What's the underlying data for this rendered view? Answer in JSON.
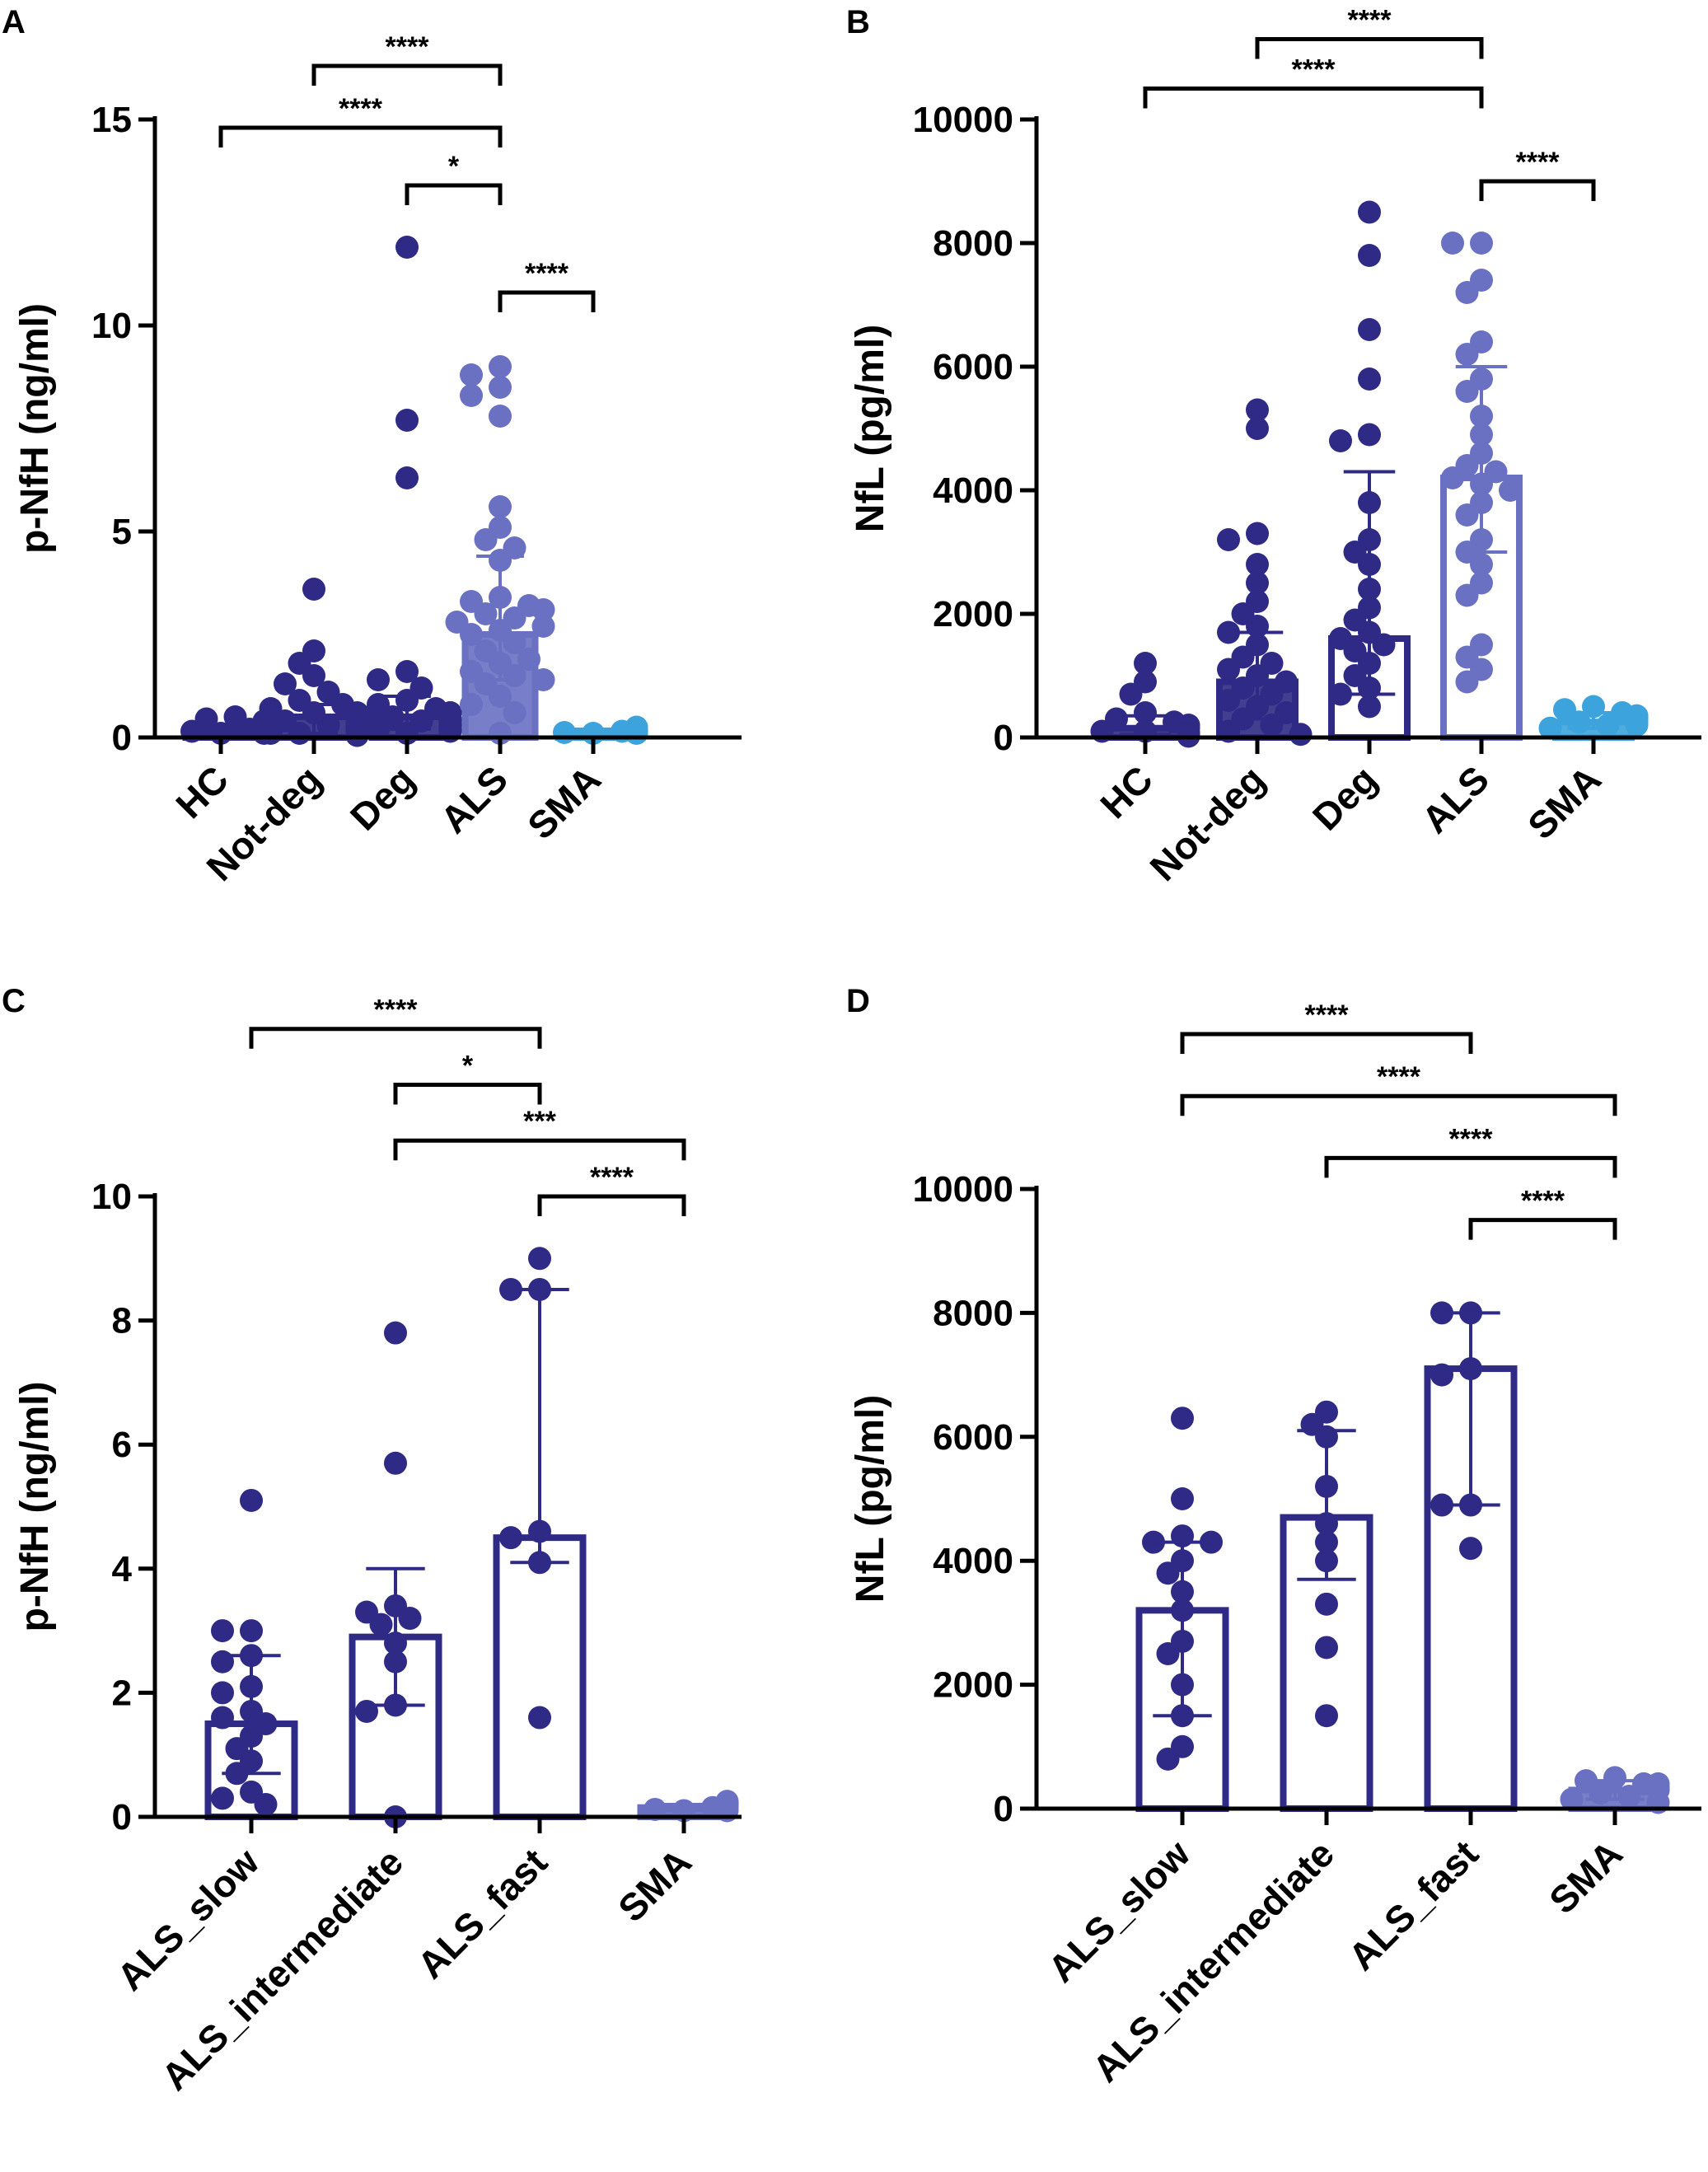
{
  "panels": [
    {
      "letter": "A",
      "chart_data": {
        "type": "bar",
        "ylabel": "p-NfH (ng/ml)",
        "ylim": [
          0,
          15
        ],
        "yticks": [
          0,
          5,
          10,
          15
        ],
        "categories": [
          "HC",
          "Not-deg",
          "Deg",
          "ALS",
          "SMA"
        ],
        "bars": [
          {
            "category": "HC",
            "mean": 0.2,
            "err_low": 0.1,
            "err_high": 0.3,
            "color": "#2e2a85",
            "filled": true,
            "points": [
              0.1,
              0.15,
              0.2,
              0.2,
              0.25,
              0.3,
              0.3,
              0.35,
              0.35,
              0.4,
              0.45,
              0.5,
              0.1,
              0.15
            ]
          },
          {
            "category": "Not-deg",
            "mean": 0.5,
            "err_low": 0.1,
            "err_high": 0.8,
            "color": "#2e2a85",
            "filled": true,
            "points": [
              3.6,
              2.1,
              1.8,
              1.5,
              1.3,
              1.1,
              0.9,
              0.8,
              0.7,
              0.6,
              0.5,
              0.5,
              0.4,
              0.4,
              0.3,
              0.3,
              0.2,
              0.2,
              0.1,
              0.1,
              0.05,
              0.05,
              0.6,
              0.35,
              0.25
            ]
          },
          {
            "category": "Deg",
            "mean": 0.5,
            "err_low": 0.2,
            "err_high": 1.0,
            "color": "#2e2a85",
            "filled": true,
            "points": [
              11.9,
              7.7,
              6.3,
              1.6,
              1.4,
              1.2,
              0.9,
              0.8,
              0.7,
              0.6,
              0.5,
              0.5,
              0.4,
              0.4,
              0.3,
              0.3,
              0.2,
              0.2,
              0.15,
              0.1,
              0.6,
              0.45
            ]
          },
          {
            "category": "ALS",
            "mean": 2.5,
            "err_low": 1.4,
            "err_high": 4.4,
            "color": "#6a70c2",
            "filled": true,
            "points": [
              9.0,
              8.8,
              8.5,
              8.3,
              7.8,
              5.6,
              5.1,
              4.8,
              4.6,
              4.3,
              3.4,
              3.3,
              3.2,
              3.1,
              3.0,
              2.9,
              2.8,
              2.7,
              2.6,
              2.5,
              2.3,
              2.1,
              1.9,
              1.8,
              1.6,
              1.5,
              1.4,
              1.3,
              1.0,
              0.8,
              0.6,
              0.1
            ]
          },
          {
            "category": "SMA",
            "mean": 0.15,
            "err_low": 0.1,
            "err_high": 0.2,
            "color": "#3ca3dc",
            "filled": true,
            "points": [
              0.1,
              0.12,
              0.15,
              0.15,
              0.18,
              0.2,
              0.2,
              0.22,
              0.25,
              0.15,
              0.1,
              0.12
            ]
          }
        ],
        "significance": [
          {
            "from": "Not-deg",
            "to": "ALS",
            "label": "****",
            "y": 16.3
          },
          {
            "from": "HC",
            "to": "ALS",
            "label": "****",
            "y": 14.8
          },
          {
            "from": "Deg",
            "to": "ALS",
            "label": "*",
            "y": 13.4
          },
          {
            "from": "ALS",
            "to": "SMA",
            "label": "****",
            "y": 10.8
          }
        ]
      }
    },
    {
      "letter": "B",
      "chart_data": {
        "type": "bar",
        "ylabel": "NfL (pg/ml)",
        "ylim": [
          0,
          10000
        ],
        "yticks": [
          0,
          2000,
          4000,
          6000,
          8000,
          10000
        ],
        "categories": [
          "HC",
          "Not-deg",
          "Deg",
          "ALS",
          "SMA"
        ],
        "bars": [
          {
            "category": "HC",
            "mean": 150,
            "err_low": 50,
            "err_high": 350,
            "color": "#2e2a85",
            "filled": true,
            "points": [
              1200,
              900,
              700,
              400,
              300,
              250,
              200,
              150,
              100,
              100,
              80,
              60,
              50,
              40,
              30,
              20
            ]
          },
          {
            "category": "Not-deg",
            "mean": 900,
            "err_low": 300,
            "err_high": 1700,
            "color": "#2e2a85",
            "filled": true,
            "points": [
              5300,
              5000,
              3300,
              3200,
              2800,
              2500,
              2200,
              2000,
              1800,
              1700,
              1500,
              1300,
              1200,
              1100,
              1000,
              900,
              800,
              700,
              600,
              500,
              400,
              300,
              200,
              100,
              50
            ]
          },
          {
            "category": "Deg",
            "mean": 1600,
            "err_low": 700,
            "err_high": 4300,
            "color": "#2e2a85",
            "filled": false,
            "points": [
              8500,
              7800,
              6600,
              5800,
              4900,
              4800,
              3800,
              3200,
              3000,
              2800,
              2400,
              2100,
              1900,
              1700,
              1600,
              1500,
              1400,
              1200,
              1000,
              800,
              700,
              500
            ]
          },
          {
            "category": "ALS",
            "mean": 4200,
            "err_low": 3000,
            "err_high": 6000,
            "color": "#6a70c2",
            "filled": false,
            "points": [
              8000,
              8000,
              7400,
              7200,
              6400,
              6200,
              5800,
              5600,
              5200,
              4900,
              4600,
              4400,
              4300,
              4200,
              4100,
              4000,
              3800,
              3600,
              3200,
              3000,
              2800,
              2500,
              2300,
              1500,
              1300,
              1100,
              900
            ]
          },
          {
            "category": "SMA",
            "mean": 250,
            "err_low": 150,
            "err_high": 400,
            "color": "#3ca3dc",
            "filled": true,
            "points": [
              500,
              450,
              400,
              350,
              300,
              250,
              200,
              150,
              250,
              300,
              200,
              350
            ]
          }
        ],
        "significance": [
          {
            "from": "Not-deg",
            "to": "ALS",
            "label": "****",
            "y": 11300
          },
          {
            "from": "HC",
            "to": "ALS",
            "label": "****",
            "y": 10500
          },
          {
            "from": "ALS",
            "to": "SMA",
            "label": "****",
            "y": 9000
          }
        ]
      }
    },
    {
      "letter": "C",
      "chart_data": {
        "type": "bar",
        "ylabel": "p-NfH (ng/ml)",
        "ylim": [
          0,
          10
        ],
        "yticks": [
          0,
          2,
          4,
          6,
          8,
          10
        ],
        "categories": [
          "ALS_slow",
          "ALS_intermediate",
          "ALS_fast",
          "SMA"
        ],
        "bars": [
          {
            "category": "ALS_slow",
            "mean": 1.5,
            "err_low": 0.7,
            "err_high": 2.6,
            "color": "#2e2a85",
            "filled": false,
            "points": [
              5.1,
              3.0,
              3.0,
              2.6,
              2.5,
              2.1,
              2.0,
              1.7,
              1.6,
              1.5,
              1.3,
              1.1,
              0.9,
              0.7,
              0.4,
              0.3,
              0.2
            ]
          },
          {
            "category": "ALS_intermediate",
            "mean": 2.9,
            "err_low": 1.8,
            "err_high": 4.0,
            "color": "#2e2a85",
            "filled": false,
            "points": [
              7.8,
              5.7,
              3.4,
              3.3,
              3.2,
              3.1,
              2.8,
              2.5,
              1.8,
              1.7,
              0.0
            ]
          },
          {
            "category": "ALS_fast",
            "mean": 4.5,
            "err_low": 4.1,
            "err_high": 8.5,
            "color": "#2e2a85",
            "filled": false,
            "points": [
              9.0,
              8.5,
              8.5,
              4.6,
              4.5,
              4.1,
              1.6
            ]
          },
          {
            "category": "SMA",
            "mean": 0.15,
            "err_low": 0.1,
            "err_high": 0.2,
            "color": "#6a70c2",
            "filled": true,
            "points": [
              0.1,
              0.12,
              0.15,
              0.18,
              0.2,
              0.22,
              0.25,
              0.15,
              0.1,
              0.2
            ]
          }
        ],
        "significance": [
          {
            "from": "ALS_slow",
            "to": "ALS_fast",
            "label": "****",
            "y": 12.7
          },
          {
            "from": "ALS_intermediate",
            "to": "ALS_fast",
            "label": "*",
            "y": 11.8
          },
          {
            "from": "ALS_intermediate",
            "to": "SMA",
            "label": "***",
            "y": 10.9
          },
          {
            "from": "ALS_fast",
            "to": "SMA",
            "label": "****",
            "y": 10.0
          }
        ]
      }
    },
    {
      "letter": "D",
      "chart_data": {
        "type": "bar",
        "ylabel": "NfL (pg/ml)",
        "ylim": [
          0,
          10000
        ],
        "yticks": [
          0,
          2000,
          4000,
          6000,
          8000,
          10000
        ],
        "categories": [
          "ALS_slow",
          "ALS_intermediate",
          "ALS_fast",
          "SMA"
        ],
        "bars": [
          {
            "category": "ALS_slow",
            "mean": 3200,
            "err_low": 1500,
            "err_high": 4300,
            "color": "#2e2a85",
            "filled": false,
            "points": [
              6300,
              5000,
              4400,
              4300,
              4300,
              4000,
              3800,
              3500,
              3200,
              2700,
              2500,
              2000,
              1500,
              1000,
              800
            ]
          },
          {
            "category": "ALS_intermediate",
            "mean": 4700,
            "err_low": 3700,
            "err_high": 6100,
            "color": "#2e2a85",
            "filled": false,
            "points": [
              6400,
              6200,
              6000,
              5200,
              4600,
              4300,
              4000,
              3300,
              2600,
              1500
            ]
          },
          {
            "category": "ALS_fast",
            "mean": 7100,
            "err_low": 4900,
            "err_high": 8000,
            "color": "#2e2a85",
            "filled": false,
            "points": [
              8000,
              8000,
              7100,
              7000,
              4900,
              4900,
              4200
            ]
          },
          {
            "category": "SMA",
            "mean": 300,
            "err_low": 150,
            "err_high": 450,
            "color": "#6a70c2",
            "filled": true,
            "points": [
              500,
              450,
              400,
              350,
              300,
              250,
              200,
              150,
              100,
              300,
              400
            ]
          }
        ],
        "significance": [
          {
            "from": "ALS_slow",
            "to": "ALS_fast",
            "label": "****",
            "y": 12500
          },
          {
            "from": "ALS_slow",
            "to": "SMA",
            "label": "****",
            "y": 11500
          },
          {
            "from": "ALS_intermediate",
            "to": "SMA",
            "label": "****",
            "y": 10500
          },
          {
            "from": "ALS_fast",
            "to": "SMA",
            "label": "****",
            "y": 9500
          }
        ]
      }
    }
  ]
}
